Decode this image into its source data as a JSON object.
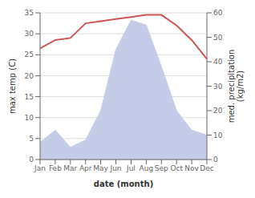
{
  "chart_data": {
    "type": "line",
    "categories": [
      "Jan",
      "Feb",
      "Mar",
      "Apr",
      "May",
      "Jun",
      "Jul",
      "Aug",
      "Sep",
      "Oct",
      "Nov",
      "Dec"
    ],
    "series": [
      {
        "type": "area",
        "color": "#c5cce8",
        "axis": "y2",
        "values": [
          7,
          12,
          5,
          8,
          20,
          45,
          57,
          55,
          38,
          20,
          12,
          10
        ]
      },
      {
        "type": "line",
        "color": "#cc5555",
        "values": [
          26.5,
          28.5,
          29.0,
          32.5,
          33.0,
          33.5,
          34.0,
          34.5,
          34.5,
          32.0,
          28.5,
          24.0
        ]
      }
    ],
    "x_label": "date (month)",
    "y_label": "max temp (C)",
    "y2_label": "med. precipitation\n(kg/m2)",
    "ylim": [
      0,
      35
    ],
    "yticks": [
      0,
      5,
      10,
      15,
      20,
      25,
      30,
      35
    ],
    "y2lim": [
      0,
      60
    ],
    "y2ticks": [
      0,
      10,
      20,
      30,
      40,
      50,
      60
    ],
    "grid": true
  }
}
